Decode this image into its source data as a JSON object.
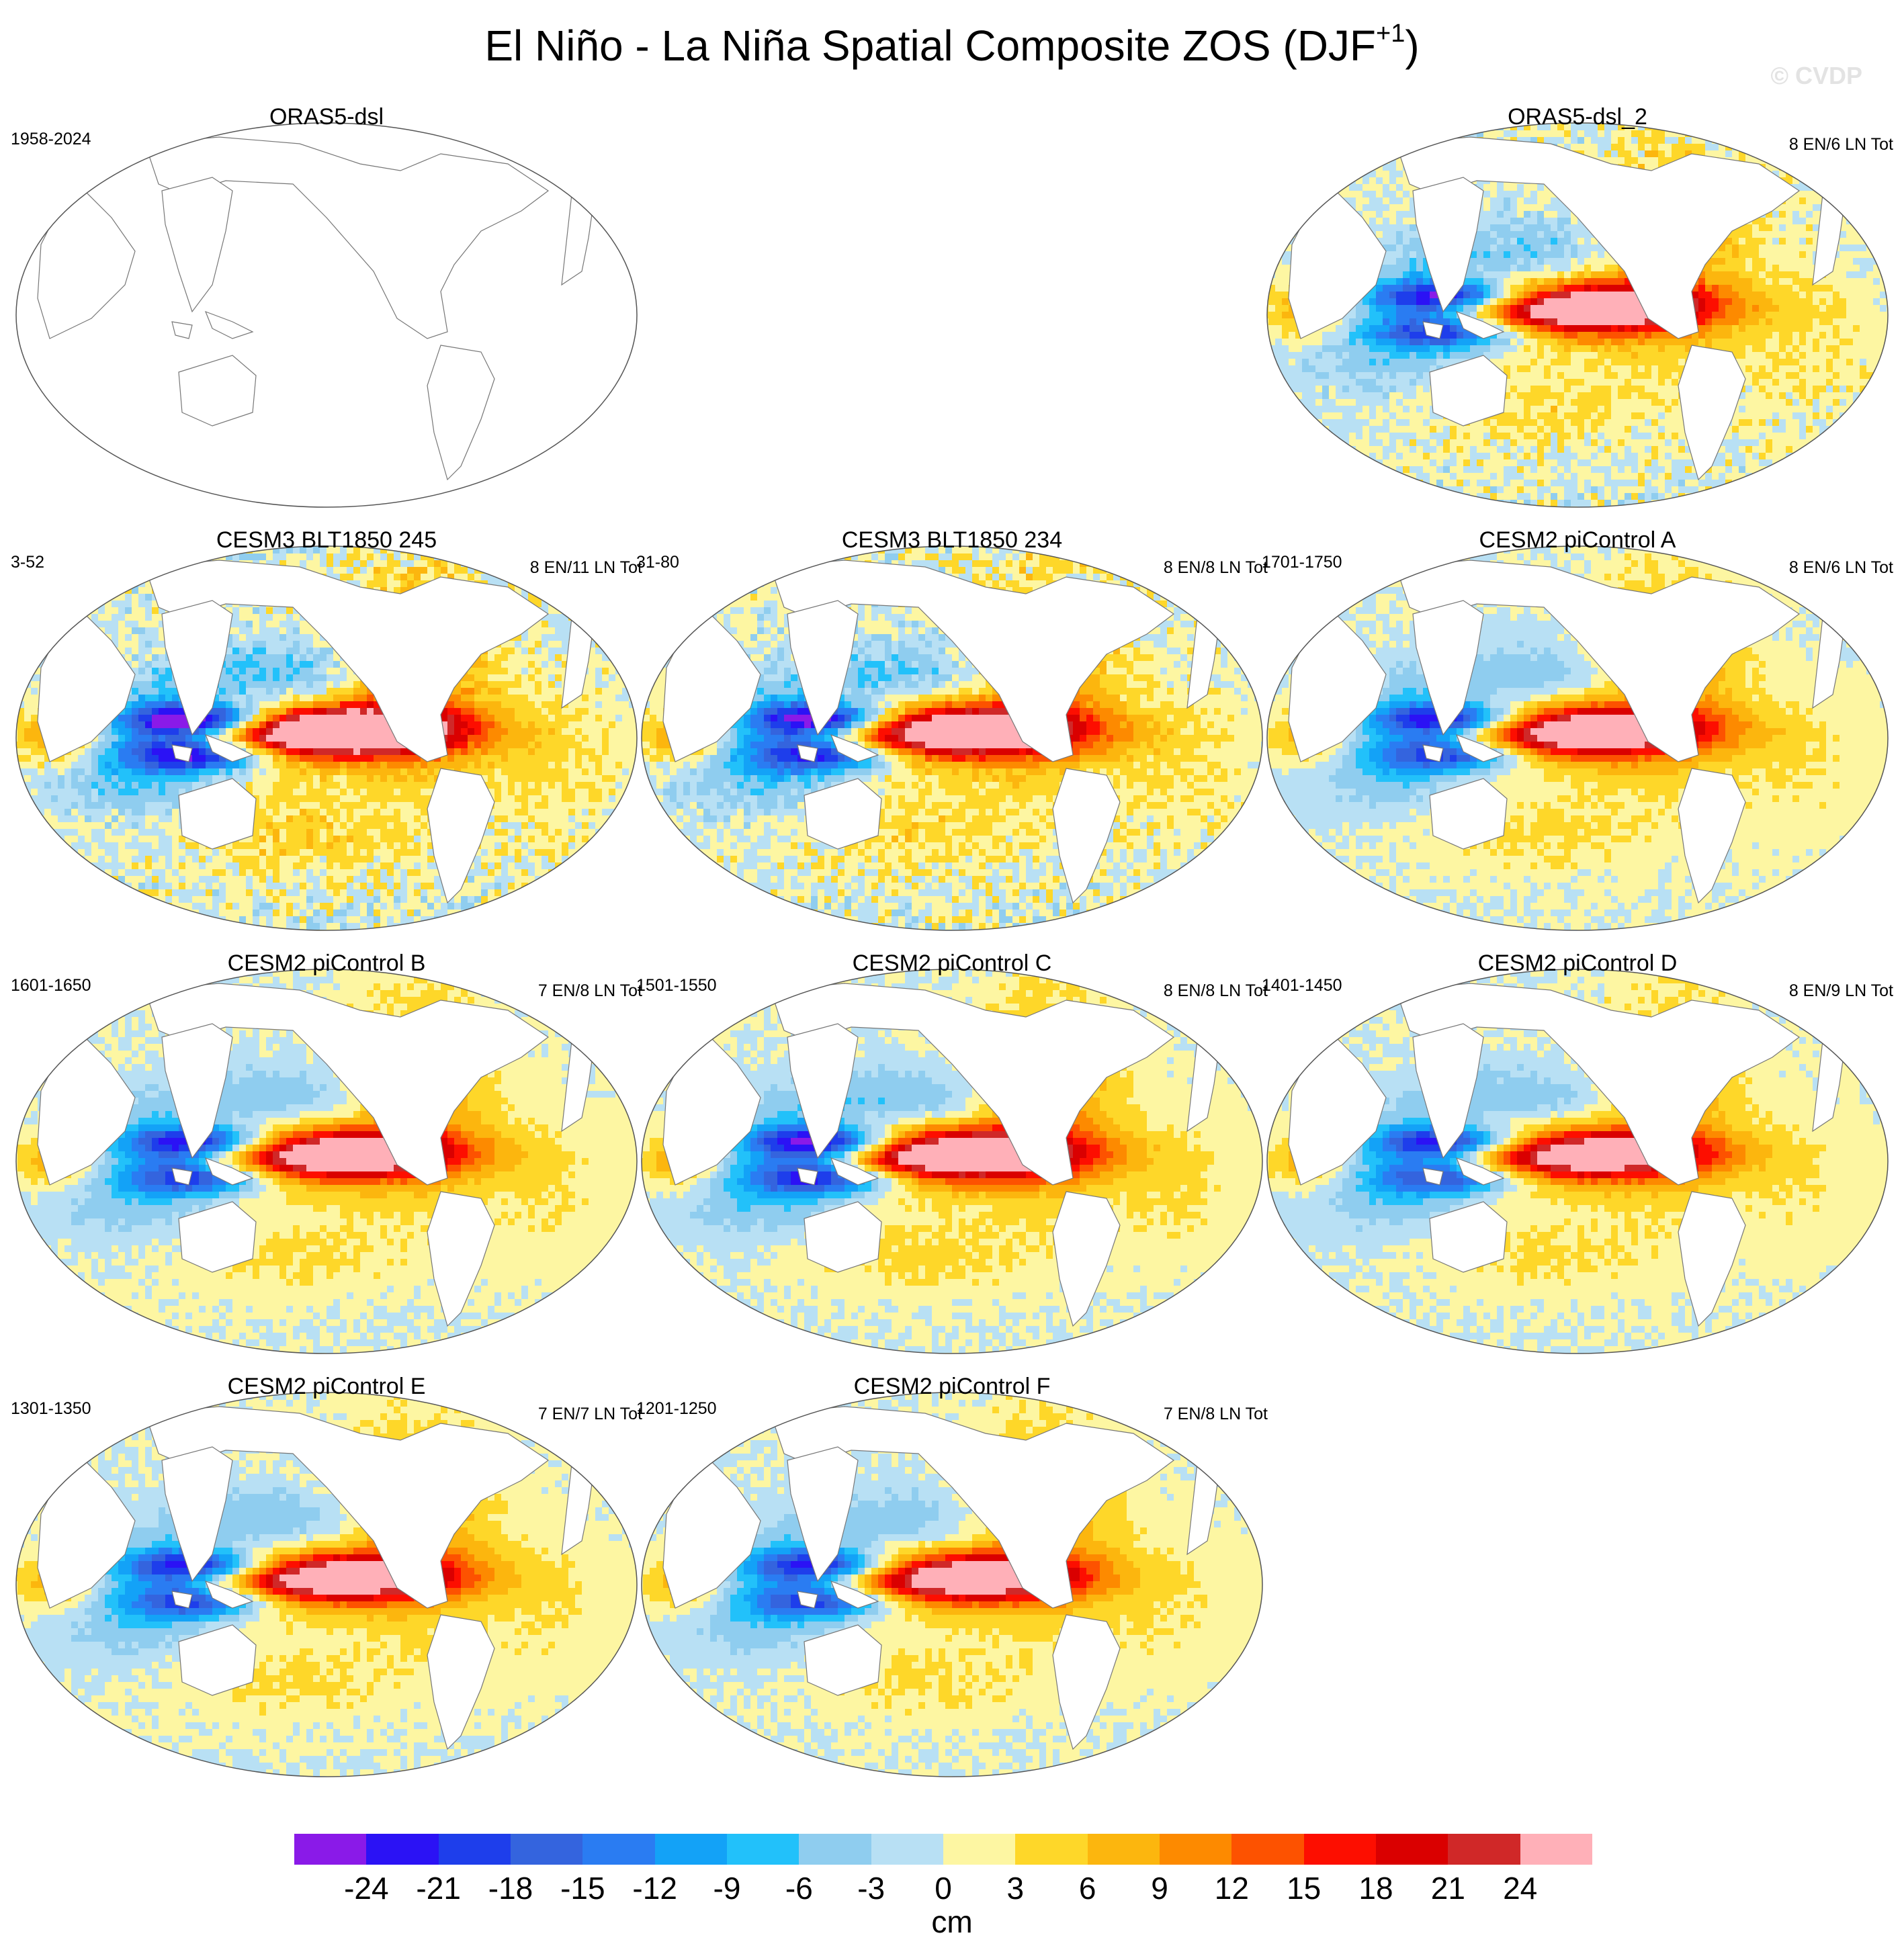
{
  "title": {
    "main": "El Niño - La Niña Spatial Composite ZOS (DJF",
    "sup": "+1",
    "tail": ")"
  },
  "watermark": "© CVDP",
  "panels": [
    {
      "title": "ORAS5-dsl",
      "years": "1958-2024",
      "counts": "",
      "empty": true
    },
    {
      "title": "ORAS5-dsl_2",
      "years": "",
      "counts": "8 EN/6 LN Tot",
      "amp": 0.95,
      "noise": 0.45
    },
    {
      "title": "CESM3 BLT1850 245",
      "years": "3-52",
      "counts": "8 EN/11 LN Tot",
      "amp": 1.15,
      "noise": 0.5
    },
    {
      "title": "CESM3 BLT1850 234",
      "years": "31-80",
      "counts": "8 EN/8 LN Tot",
      "amp": 1.05,
      "noise": 0.5
    },
    {
      "title": "CESM2 piControl A",
      "years": "1701-1750",
      "counts": "8 EN/6 LN Tot",
      "amp": 0.95,
      "noise": 0.22
    },
    {
      "title": "CESM2 piControl B",
      "years": "1601-1650",
      "counts": "7 EN/8 LN Tot",
      "amp": 0.95,
      "noise": 0.2
    },
    {
      "title": "CESM2 piControl C",
      "years": "1501-1550",
      "counts": "8 EN/8 LN Tot",
      "amp": 1.05,
      "noise": 0.2
    },
    {
      "title": "CESM2 piControl D",
      "years": "1401-1450",
      "counts": "8 EN/9 LN Tot",
      "amp": 0.9,
      "noise": 0.2
    },
    {
      "title": "CESM2 piControl E",
      "years": "1301-1350",
      "counts": "7 EN/7 LN Tot",
      "amp": 0.92,
      "noise": 0.2
    },
    {
      "title": "CESM2 piControl F",
      "years": "1201-1250",
      "counts": "7 EN/8 LN Tot",
      "amp": 0.92,
      "noise": 0.2
    }
  ],
  "colorbar": {
    "units": "cm",
    "colors": [
      "#8a1ae8",
      "#2b12f5",
      "#1e3eeb",
      "#3464de",
      "#2a7cf2",
      "#13a2f7",
      "#22c1fa",
      "#8fcdef",
      "#b8e0f4",
      "#fdf6a2",
      "#fed729",
      "#fcb60e",
      "#fd8a00",
      "#fd5200",
      "#fd0e00",
      "#da0000",
      "#d02828",
      "#ffb0b8"
    ],
    "levels": [
      -24,
      -21,
      -18,
      -15,
      -12,
      -9,
      -6,
      -3,
      0,
      3,
      6,
      9,
      12,
      15,
      18,
      21,
      24
    ],
    "labels": [
      "-24",
      "-21",
      "-18",
      "-15",
      "-12",
      "-9",
      "-6",
      "-3",
      "0",
      "3",
      "6",
      "9",
      "12",
      "15",
      "18",
      "21",
      "24"
    ]
  }
}
